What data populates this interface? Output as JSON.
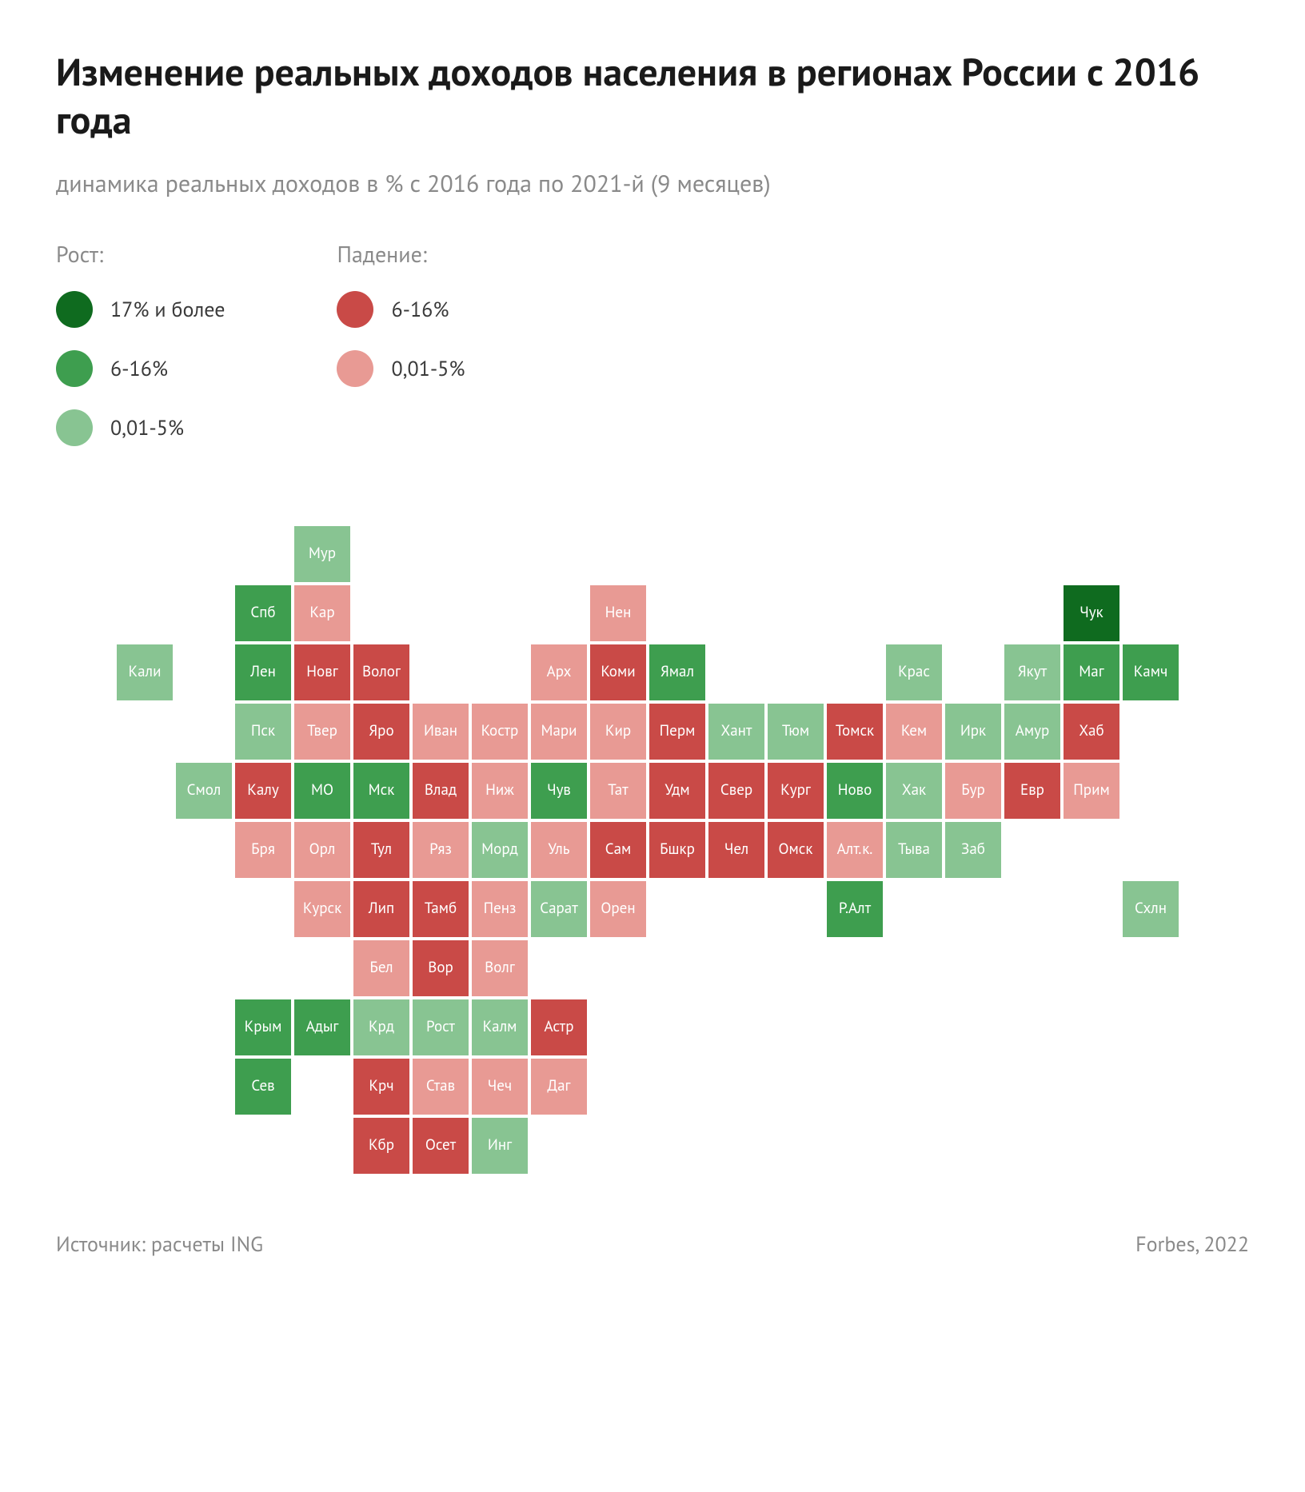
{
  "title": "Изменение реальных доходов населения в регионах России с 2016 года",
  "subtitle": "динамика реальных доходов в % с 2016 года по 2021-й (9 месяцев)",
  "legend": {
    "growth": {
      "heading": "Рост:",
      "items": [
        {
          "label": "17% и более",
          "colorKey": "g3"
        },
        {
          "label": "6-16%",
          "colorKey": "g2"
        },
        {
          "label": "0,01-5%",
          "colorKey": "g1"
        }
      ]
    },
    "decline": {
      "heading": "Падение:",
      "items": [
        {
          "label": "6-16%",
          "colorKey": "r2"
        },
        {
          "label": "0,01-5%",
          "colorKey": "r1"
        }
      ]
    }
  },
  "colors": {
    "g3": "#0f6b1f",
    "g2": "#3e9e4f",
    "g1": "#88c492",
    "r1": "#e89a94",
    "r2": "#c94a47",
    "bg": "#ffffff",
    "cellBorder": "#ffffff",
    "text": "#1a1a1a",
    "muted": "#8a8a8a"
  },
  "grid": {
    "cellSize": 74,
    "cols": 20,
    "rows": 12
  },
  "cells": [
    {
      "label": "Мур",
      "row": 0,
      "col": 4,
      "c": "g1"
    },
    {
      "label": "Спб",
      "row": 1,
      "col": 3,
      "c": "g2"
    },
    {
      "label": "Кар",
      "row": 1,
      "col": 4,
      "c": "r1"
    },
    {
      "label": "Нен",
      "row": 1,
      "col": 9,
      "c": "r1"
    },
    {
      "label": "Чук",
      "row": 1,
      "col": 17,
      "c": "g3"
    },
    {
      "label": "Кали",
      "row": 2,
      "col": 1,
      "c": "g1"
    },
    {
      "label": "Лен",
      "row": 2,
      "col": 3,
      "c": "g2"
    },
    {
      "label": "Новг",
      "row": 2,
      "col": 4,
      "c": "r2"
    },
    {
      "label": "Волог",
      "row": 2,
      "col": 5,
      "c": "r2"
    },
    {
      "label": "Арх",
      "row": 2,
      "col": 8,
      "c": "r1"
    },
    {
      "label": "Коми",
      "row": 2,
      "col": 9,
      "c": "r2"
    },
    {
      "label": "Ямал",
      "row": 2,
      "col": 10,
      "c": "g2"
    },
    {
      "label": "Крас",
      "row": 2,
      "col": 14,
      "c": "g1"
    },
    {
      "label": "Якут",
      "row": 2,
      "col": 16,
      "c": "g1"
    },
    {
      "label": "Маг",
      "row": 2,
      "col": 17,
      "c": "g2"
    },
    {
      "label": "Камч",
      "row": 2,
      "col": 18,
      "c": "g2"
    },
    {
      "label": "Пск",
      "row": 3,
      "col": 3,
      "c": "g1"
    },
    {
      "label": "Твер",
      "row": 3,
      "col": 4,
      "c": "r1"
    },
    {
      "label": "Яро",
      "row": 3,
      "col": 5,
      "c": "r2"
    },
    {
      "label": "Иван",
      "row": 3,
      "col": 6,
      "c": "r1"
    },
    {
      "label": "Костр",
      "row": 3,
      "col": 7,
      "c": "r1"
    },
    {
      "label": "Мари",
      "row": 3,
      "col": 8,
      "c": "r1"
    },
    {
      "label": "Кир",
      "row": 3,
      "col": 9,
      "c": "r1"
    },
    {
      "label": "Перм",
      "row": 3,
      "col": 10,
      "c": "r2"
    },
    {
      "label": "Хант",
      "row": 3,
      "col": 11,
      "c": "g1"
    },
    {
      "label": "Тюм",
      "row": 3,
      "col": 12,
      "c": "g1"
    },
    {
      "label": "Томск",
      "row": 3,
      "col": 13,
      "c": "r2"
    },
    {
      "label": "Кем",
      "row": 3,
      "col": 14,
      "c": "r1"
    },
    {
      "label": "Ирк",
      "row": 3,
      "col": 15,
      "c": "g1"
    },
    {
      "label": "Амур",
      "row": 3,
      "col": 16,
      "c": "g1"
    },
    {
      "label": "Хаб",
      "row": 3,
      "col": 17,
      "c": "r2"
    },
    {
      "label": "Смол",
      "row": 4,
      "col": 2,
      "c": "g1"
    },
    {
      "label": "Калу",
      "row": 4,
      "col": 3,
      "c": "r2"
    },
    {
      "label": "МО",
      "row": 4,
      "col": 4,
      "c": "g2"
    },
    {
      "label": "Мск",
      "row": 4,
      "col": 5,
      "c": "g2"
    },
    {
      "label": "Влад",
      "row": 4,
      "col": 6,
      "c": "r2"
    },
    {
      "label": "Ниж",
      "row": 4,
      "col": 7,
      "c": "r1"
    },
    {
      "label": "Чув",
      "row": 4,
      "col": 8,
      "c": "g2"
    },
    {
      "label": "Тат",
      "row": 4,
      "col": 9,
      "c": "r1"
    },
    {
      "label": "Удм",
      "row": 4,
      "col": 10,
      "c": "r2"
    },
    {
      "label": "Свер",
      "row": 4,
      "col": 11,
      "c": "r2"
    },
    {
      "label": "Кург",
      "row": 4,
      "col": 12,
      "c": "r2"
    },
    {
      "label": "Ново",
      "row": 4,
      "col": 13,
      "c": "g2"
    },
    {
      "label": "Хак",
      "row": 4,
      "col": 14,
      "c": "g1"
    },
    {
      "label": "Бур",
      "row": 4,
      "col": 15,
      "c": "r1"
    },
    {
      "label": "Евр",
      "row": 4,
      "col": 16,
      "c": "r2"
    },
    {
      "label": "Прим",
      "row": 4,
      "col": 17,
      "c": "r1"
    },
    {
      "label": "Бря",
      "row": 5,
      "col": 3,
      "c": "r1"
    },
    {
      "label": "Орл",
      "row": 5,
      "col": 4,
      "c": "r1"
    },
    {
      "label": "Тул",
      "row": 5,
      "col": 5,
      "c": "r2"
    },
    {
      "label": "Ряз",
      "row": 5,
      "col": 6,
      "c": "r1"
    },
    {
      "label": "Морд",
      "row": 5,
      "col": 7,
      "c": "g1"
    },
    {
      "label": "Уль",
      "row": 5,
      "col": 8,
      "c": "r1"
    },
    {
      "label": "Сам",
      "row": 5,
      "col": 9,
      "c": "r2"
    },
    {
      "label": "Бшкр",
      "row": 5,
      "col": 10,
      "c": "r2"
    },
    {
      "label": "Чел",
      "row": 5,
      "col": 11,
      "c": "r2"
    },
    {
      "label": "Омск",
      "row": 5,
      "col": 12,
      "c": "r2"
    },
    {
      "label": "Алт.к.",
      "row": 5,
      "col": 13,
      "c": "r1"
    },
    {
      "label": "Тыва",
      "row": 5,
      "col": 14,
      "c": "g1"
    },
    {
      "label": "Заб",
      "row": 5,
      "col": 15,
      "c": "g1"
    },
    {
      "label": "Курск",
      "row": 6,
      "col": 4,
      "c": "r1"
    },
    {
      "label": "Лип",
      "row": 6,
      "col": 5,
      "c": "r2"
    },
    {
      "label": "Тамб",
      "row": 6,
      "col": 6,
      "c": "r2"
    },
    {
      "label": "Пенз",
      "row": 6,
      "col": 7,
      "c": "r1"
    },
    {
      "label": "Сарат",
      "row": 6,
      "col": 8,
      "c": "g1"
    },
    {
      "label": "Орен",
      "row": 6,
      "col": 9,
      "c": "r1"
    },
    {
      "label": "Р.Алт",
      "row": 6,
      "col": 13,
      "c": "g2"
    },
    {
      "label": "Схлн",
      "row": 6,
      "col": 18,
      "c": "g1"
    },
    {
      "label": "Бел",
      "row": 7,
      "col": 5,
      "c": "r1"
    },
    {
      "label": "Вор",
      "row": 7,
      "col": 6,
      "c": "r2"
    },
    {
      "label": "Волг",
      "row": 7,
      "col": 7,
      "c": "r1"
    },
    {
      "label": "Крым",
      "row": 8,
      "col": 3,
      "c": "g2"
    },
    {
      "label": "Адыг",
      "row": 8,
      "col": 4,
      "c": "g2"
    },
    {
      "label": "Крд",
      "row": 8,
      "col": 5,
      "c": "g1"
    },
    {
      "label": "Рост",
      "row": 8,
      "col": 6,
      "c": "g1"
    },
    {
      "label": "Калм",
      "row": 8,
      "col": 7,
      "c": "g1"
    },
    {
      "label": "Астр",
      "row": 8,
      "col": 8,
      "c": "r2"
    },
    {
      "label": "Сев",
      "row": 9,
      "col": 3,
      "c": "g2"
    },
    {
      "label": "Крч",
      "row": 9,
      "col": 5,
      "c": "r2"
    },
    {
      "label": "Став",
      "row": 9,
      "col": 6,
      "c": "r1"
    },
    {
      "label": "Чеч",
      "row": 9,
      "col": 7,
      "c": "r1"
    },
    {
      "label": "Даг",
      "row": 9,
      "col": 8,
      "c": "r1"
    },
    {
      "label": "Кбр",
      "row": 10,
      "col": 5,
      "c": "r2"
    },
    {
      "label": "Осет",
      "row": 10,
      "col": 6,
      "c": "r2"
    },
    {
      "label": "Инг",
      "row": 10,
      "col": 7,
      "c": "g1"
    }
  ],
  "footer": {
    "source": "Источник: расчеты ING",
    "credit": "Forbes, 2022"
  }
}
